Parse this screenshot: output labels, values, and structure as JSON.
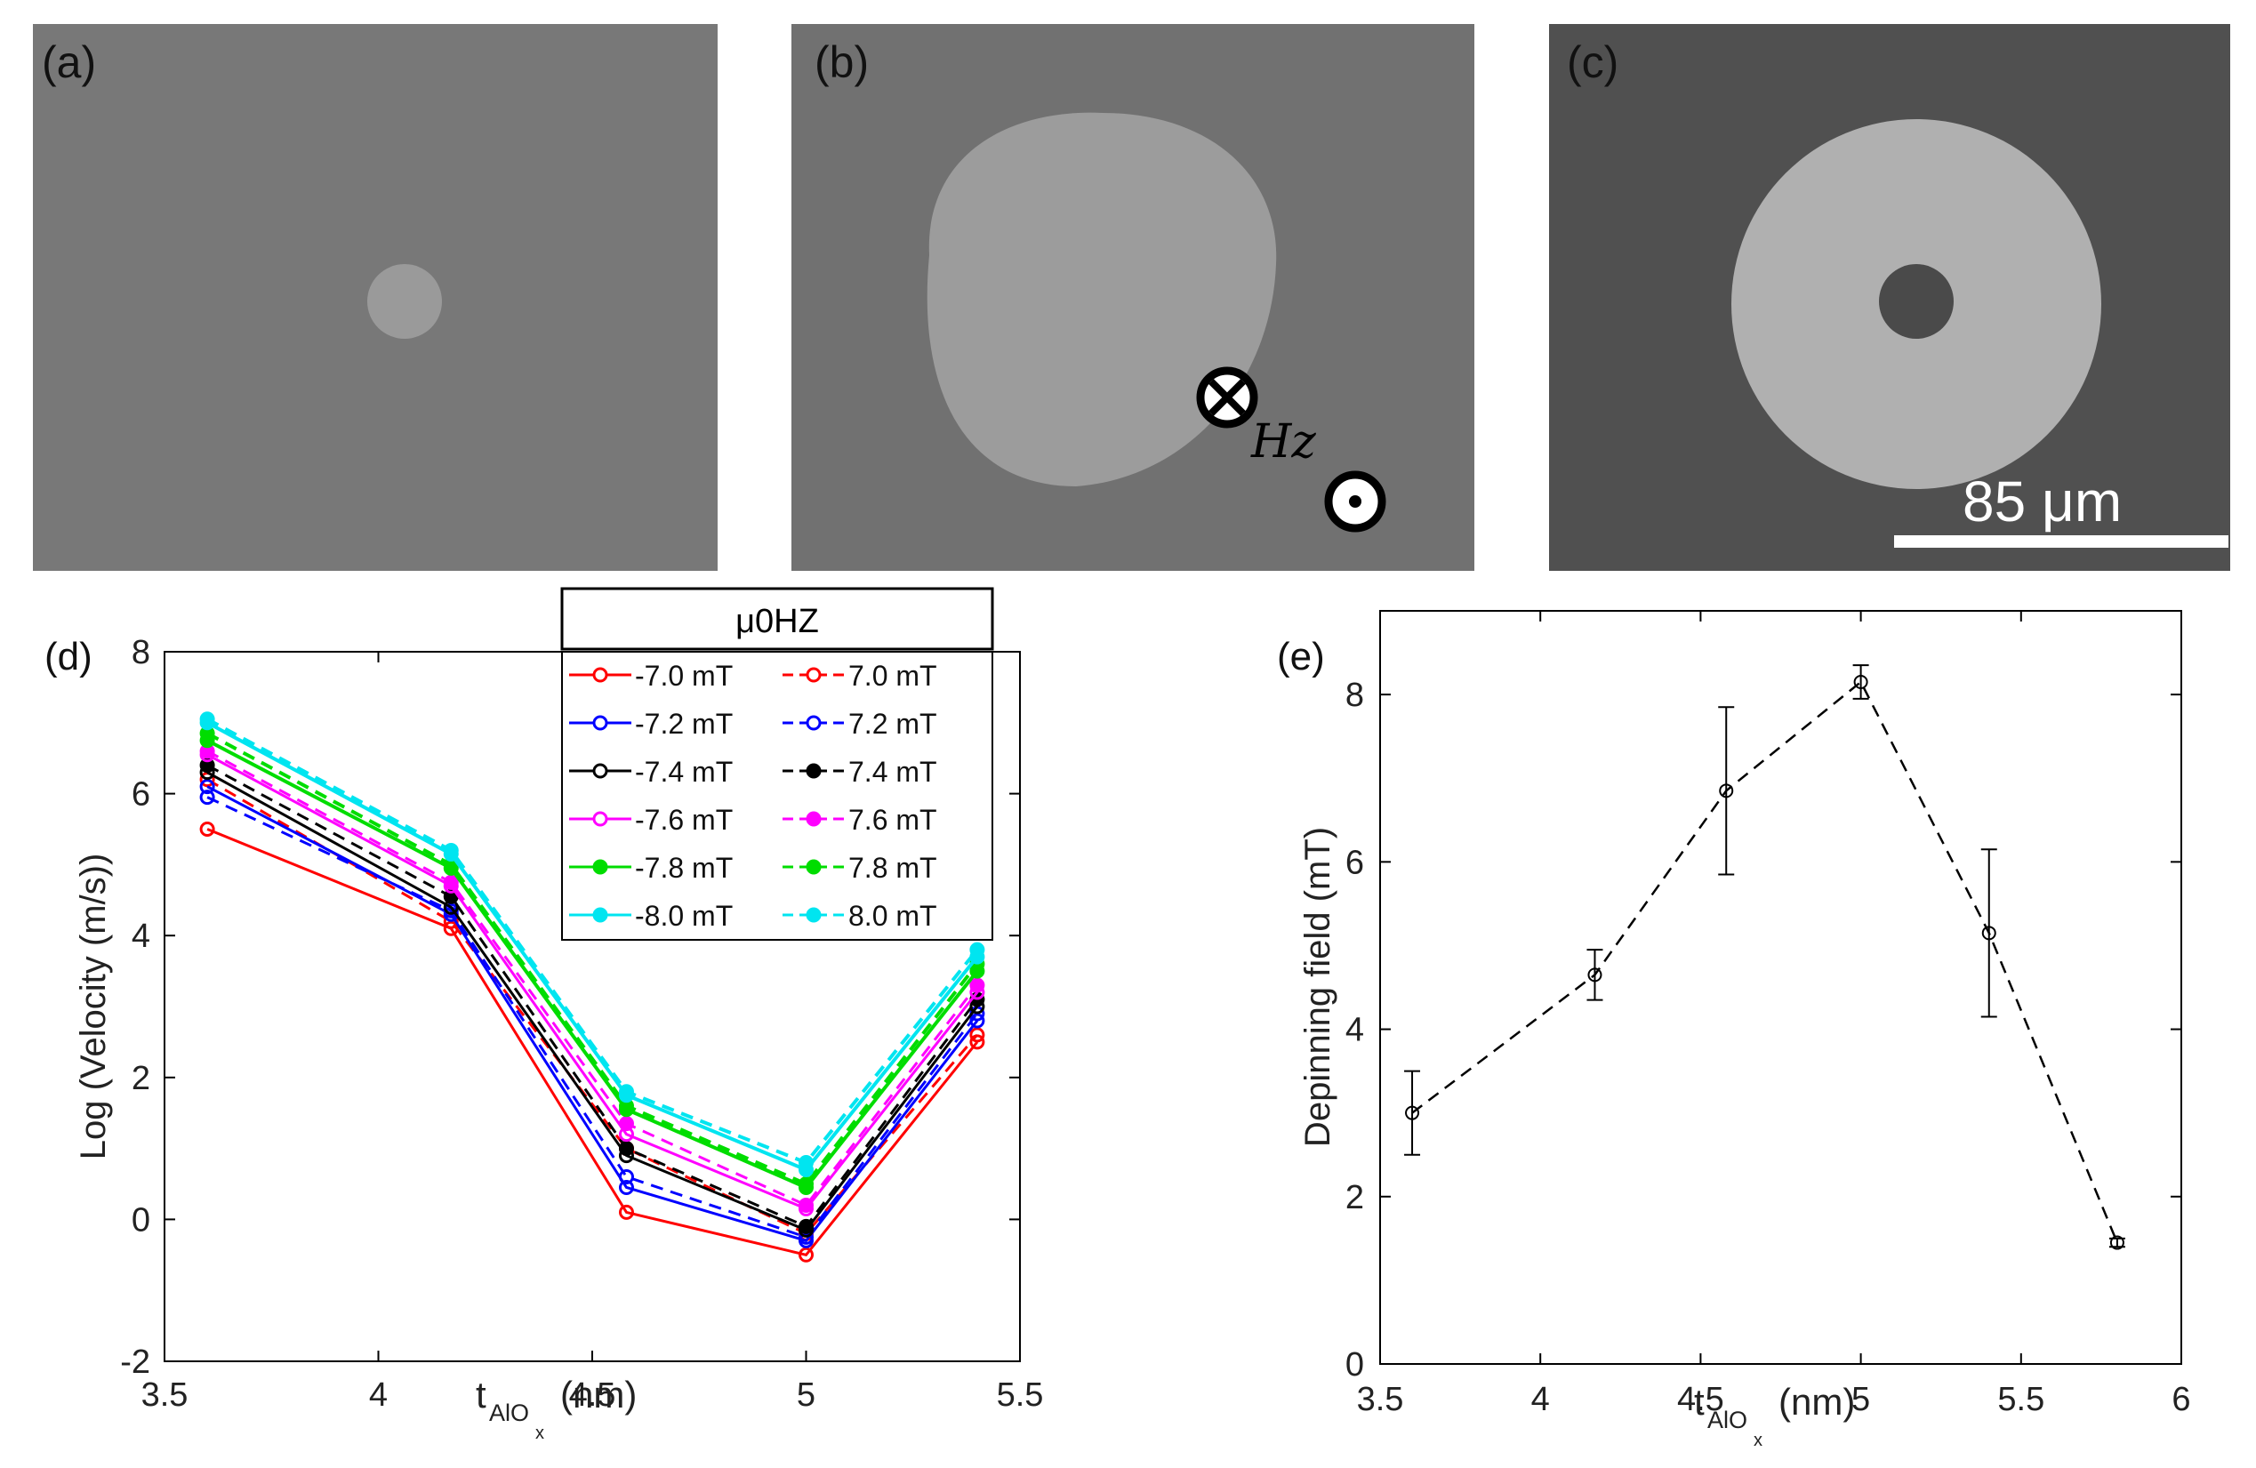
{
  "images": {
    "a": {
      "label": "(a)"
    },
    "b": {
      "label": "(b)",
      "field_label": "Hz"
    },
    "c": {
      "label": "(c)",
      "scale_bar": "85 μm"
    }
  },
  "colors": {
    "red": "#ff0000",
    "blue": "#0000ff",
    "black": "#000000",
    "magenta": "#ff00ff",
    "green": "#00dd00",
    "cyan": "#00e5f0"
  },
  "chart_data": [
    {
      "panel": "(d)",
      "type": "line",
      "xlabel": "t",
      "xlabel_sub": "AlO",
      "xlabel_subsub": "x",
      "xlabel_unit": "(nm)",
      "ylabel": "Log (Velocity (m/s))",
      "xlim": [
        3.5,
        5.5
      ],
      "ylim": [
        -2,
        8
      ],
      "xticks": [
        3.5,
        4,
        4.5,
        5,
        5.5
      ],
      "xtick_labels": [
        "3.5",
        "4",
        "4.5",
        "5",
        "5.5"
      ],
      "yticks": [
        -2,
        0,
        2,
        4,
        6,
        8
      ],
      "ytick_labels": [
        "-2",
        "0",
        "2",
        "4",
        "6",
        "8"
      ],
      "legend_title": "μ0HZ",
      "legend_position": "top-right",
      "x": [
        3.6,
        4.17,
        4.58,
        5.0,
        5.4
      ],
      "series": [
        {
          "name": "-7.0 mT",
          "color": "red",
          "style": "solid",
          "marker": "open",
          "values": [
            5.5,
            4.1,
            0.1,
            -0.5,
            2.5
          ]
        },
        {
          "name": "7.0 mT",
          "color": "red",
          "style": "dashed",
          "marker": "open",
          "values": [
            6.2,
            4.2,
            1.0,
            -0.2,
            2.6
          ]
        },
        {
          "name": "-7.2 mT",
          "color": "blue",
          "style": "solid",
          "marker": "open",
          "values": [
            6.1,
            4.3,
            0.45,
            -0.3,
            2.8
          ]
        },
        {
          "name": "7.2 mT",
          "color": "blue",
          "style": "dashed",
          "marker": "open",
          "values": [
            5.95,
            4.35,
            0.6,
            -0.25,
            2.9
          ]
        },
        {
          "name": "-7.4 mT",
          "color": "black",
          "style": "solid",
          "marker": "open",
          "values": [
            6.3,
            4.4,
            0.9,
            -0.15,
            3.0
          ]
        },
        {
          "name": "7.4 mT",
          "color": "black",
          "style": "dashed",
          "marker": "dot",
          "values": [
            6.4,
            4.55,
            1.0,
            -0.1,
            3.1
          ]
        },
        {
          "name": "-7.6 mT",
          "color": "magenta",
          "style": "solid",
          "marker": "open",
          "values": [
            6.55,
            4.7,
            1.2,
            0.15,
            3.2
          ]
        },
        {
          "name": "7.6 mT",
          "color": "magenta",
          "style": "dashed",
          "marker": "filled",
          "values": [
            6.6,
            4.75,
            1.35,
            0.2,
            3.3
          ]
        },
        {
          "name": "-7.8 mT",
          "color": "green",
          "style": "solid",
          "marker": "filled",
          "values": [
            6.75,
            4.95,
            1.55,
            0.45,
            3.5
          ]
        },
        {
          "name": "7.8 mT",
          "color": "green",
          "style": "dashed",
          "marker": "filled",
          "values": [
            6.85,
            5.0,
            1.6,
            0.5,
            3.6
          ]
        },
        {
          "name": "-8.0 mT",
          "color": "cyan",
          "style": "solid",
          "marker": "filled",
          "values": [
            7.0,
            5.15,
            1.75,
            0.7,
            3.7
          ]
        },
        {
          "name": "8.0 mT",
          "color": "cyan",
          "style": "dashed",
          "marker": "filled",
          "values": [
            7.05,
            5.2,
            1.8,
            0.8,
            3.8
          ]
        }
      ]
    },
    {
      "panel": "(e)",
      "type": "line",
      "xlabel": "t",
      "xlabel_sub": "AlO",
      "xlabel_subsub": "x",
      "xlabel_unit": "(nm)",
      "ylabel": "Depinning field (mT)",
      "xlim": [
        3.5,
        6
      ],
      "ylim": [
        0,
        9
      ],
      "xticks": [
        3.5,
        4,
        4.5,
        5,
        5.5,
        6
      ],
      "xtick_labels": [
        "3.5",
        "4",
        "4.5",
        "5",
        "5.5",
        "6"
      ],
      "yticks": [
        0,
        2,
        4,
        6,
        8
      ],
      "ytick_labels": [
        "0",
        "2",
        "4",
        "6",
        "8"
      ],
      "x": [
        3.6,
        4.17,
        4.58,
        5.0,
        5.4,
        5.8
      ],
      "values": [
        3.0,
        4.65,
        6.85,
        8.15,
        5.15,
        1.45
      ],
      "errors": [
        0.5,
        0.3,
        1.0,
        0.2,
        1.0,
        0.05
      ]
    }
  ]
}
